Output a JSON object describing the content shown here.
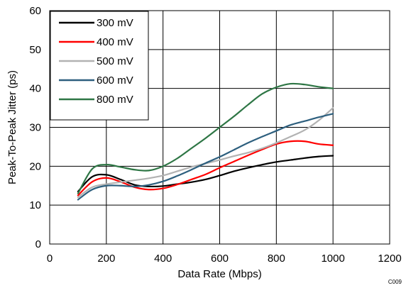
{
  "chart_data": {
    "type": "line",
    "xlabel": "Data Rate (Mbps)",
    "ylabel": "Peak-To-Peak Jitter (ps)",
    "xlim": [
      0,
      1200
    ],
    "ylim": [
      0,
      60
    ],
    "xticks": [
      0,
      200,
      400,
      600,
      800,
      1000,
      1200
    ],
    "yticks": [
      0,
      10,
      20,
      30,
      40,
      50,
      60
    ],
    "grid": true,
    "legend_position": "top-left",
    "footnote": "C009",
    "series": [
      {
        "name": "300 mV",
        "color": "#000000",
        "x": [
          100,
          150,
          200,
          250,
          300,
          350,
          400,
          450,
          500,
          550,
          600,
          650,
          700,
          750,
          800,
          850,
          900,
          950,
          1000
        ],
        "y": [
          13.5,
          17.3,
          17.8,
          16.6,
          15.2,
          14.8,
          14.9,
          15.4,
          15.9,
          16.6,
          17.6,
          18.7,
          19.6,
          20.4,
          21.1,
          21.6,
          22.1,
          22.5,
          22.7
        ]
      },
      {
        "name": "400 mV",
        "color": "#ff0000",
        "x": [
          100,
          150,
          200,
          250,
          300,
          350,
          400,
          450,
          500,
          550,
          600,
          650,
          700,
          750,
          800,
          850,
          900,
          950,
          1000
        ],
        "y": [
          12.5,
          16.0,
          17.0,
          16.0,
          14.6,
          14.0,
          14.3,
          15.3,
          16.6,
          17.9,
          19.6,
          21.2,
          22.8,
          24.3,
          25.7,
          26.4,
          26.4,
          25.7,
          25.4
        ]
      },
      {
        "name": "500 mV",
        "color": "#b2b2b2",
        "x": [
          100,
          150,
          200,
          250,
          300,
          350,
          400,
          450,
          500,
          550,
          600,
          650,
          700,
          750,
          800,
          850,
          900,
          950,
          1000
        ],
        "y": [
          12.0,
          14.6,
          15.4,
          15.9,
          16.4,
          16.9,
          17.6,
          18.7,
          19.8,
          20.7,
          21.6,
          22.6,
          23.5,
          24.6,
          26.0,
          27.6,
          29.3,
          31.8,
          35.0
        ]
      },
      {
        "name": "600 mV",
        "color": "#2d5f7e",
        "x": [
          100,
          150,
          200,
          250,
          300,
          350,
          400,
          450,
          500,
          550,
          600,
          650,
          700,
          750,
          800,
          850,
          900,
          950,
          1000
        ],
        "y": [
          11.4,
          14.0,
          15.0,
          15.0,
          14.8,
          15.2,
          16.1,
          17.5,
          19.1,
          20.8,
          22.4,
          24.2,
          26.0,
          27.6,
          29.1,
          30.6,
          31.6,
          32.6,
          33.5
        ]
      },
      {
        "name": "800 mV",
        "color": "#2e7645",
        "x": [
          100,
          150,
          200,
          250,
          300,
          350,
          400,
          450,
          500,
          550,
          600,
          650,
          700,
          750,
          800,
          850,
          900,
          950,
          1000
        ],
        "y": [
          13.0,
          19.3,
          20.4,
          19.8,
          19.1,
          18.9,
          20.0,
          22.0,
          24.6,
          27.2,
          30.0,
          32.8,
          35.8,
          38.6,
          40.3,
          41.2,
          41.0,
          40.4,
          40.0
        ]
      }
    ]
  }
}
